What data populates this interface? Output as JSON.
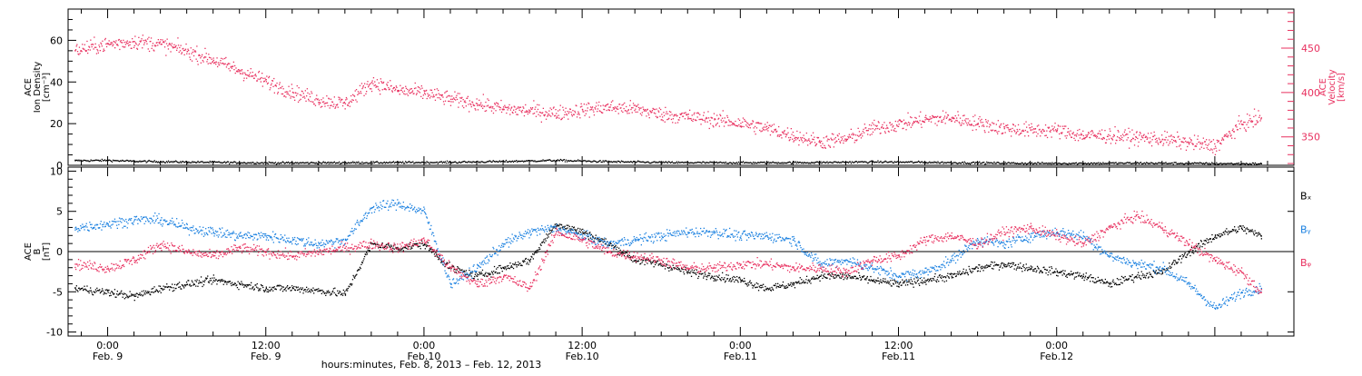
{
  "colors": {
    "black": "#000000",
    "pink": "#e8305f",
    "blue": "#1a80e0"
  },
  "chart_data": [
    {
      "type": "scatter",
      "ylabel_lines": [
        "ACE",
        "Ion Density",
        "[cm⁻³]"
      ],
      "y2label_lines": [
        "ACE",
        "Velocity",
        "[km/s]"
      ],
      "ylim": [
        0,
        75
      ],
      "y_ticks": [
        0,
        20,
        40,
        60
      ],
      "y2lim": [
        318,
        494
      ],
      "y2_ticks": [
        350,
        400,
        450
      ],
      "series": [
        {
          "axis": "left",
          "color": "#000000",
          "x": [
            -2.5,
            0,
            2,
            4,
            6,
            8,
            10,
            14,
            18,
            22,
            26,
            30,
            34,
            38,
            42,
            46,
            50,
            54,
            58,
            62,
            66,
            70,
            74,
            78,
            82,
            86,
            87.5
          ],
          "y": [
            2.5,
            2.6,
            2.2,
            2.0,
            1.8,
            1.7,
            1.5,
            1.4,
            1.5,
            1.6,
            1.7,
            2.1,
            2.6,
            2.0,
            1.6,
            1.5,
            1.5,
            1.6,
            1.9,
            1.7,
            1.4,
            1.2,
            1.2,
            1.3,
            1.2,
            1.0,
            1.0
          ]
        },
        {
          "axis": "right",
          "color": "#e8305f",
          "x": [
            -2.5,
            0,
            2,
            4,
            6,
            8,
            10,
            12,
            14,
            16,
            18,
            20,
            22,
            24,
            26,
            28,
            30,
            32,
            34,
            36,
            38,
            40,
            42,
            44,
            46,
            48,
            50,
            52,
            54,
            56,
            58,
            60,
            62,
            64,
            66,
            68,
            70,
            72,
            74,
            76,
            78,
            80,
            82,
            84,
            86,
            87.5
          ],
          "y": [
            448,
            455,
            458,
            455,
            447,
            437,
            425,
            413,
            401,
            392,
            388,
            412,
            403,
            400,
            393,
            388,
            382,
            380,
            377,
            381,
            384,
            382,
            376,
            373,
            370,
            366,
            360,
            352,
            345,
            348,
            360,
            365,
            370,
            372,
            366,
            360,
            358,
            358,
            352,
            352,
            350,
            348,
            344,
            340,
            365,
            372
          ]
        }
      ]
    },
    {
      "type": "scatter",
      "ylabel_lines": [
        "ACE",
        "B",
        "[nT]"
      ],
      "ylim": [
        -10.5,
        10.5
      ],
      "y_ticks": [
        -10,
        -5,
        0,
        5,
        10
      ],
      "zero_line": true,
      "legend": [
        "Bₓ",
        "Bᵧ",
        "Bᵩ"
      ],
      "series": [
        {
          "name": "Bₓ",
          "color": "#000000",
          "x": [
            -2.5,
            0,
            2,
            4,
            6,
            8,
            10,
            12,
            14,
            16,
            18,
            20,
            22,
            24,
            26,
            28,
            30,
            32,
            34,
            36,
            38,
            40,
            42,
            44,
            46,
            48,
            50,
            52,
            54,
            56,
            58,
            60,
            62,
            64,
            66,
            68,
            70,
            72,
            74,
            76,
            78,
            80,
            82,
            84,
            86,
            87.5
          ],
          "y": [
            -4.5,
            -5.0,
            -5.5,
            -4.5,
            -4.0,
            -3.5,
            -4.0,
            -4.5,
            -4.5,
            -4.8,
            -5.2,
            1.0,
            0.5,
            1.0,
            -2.0,
            -3.0,
            -2.0,
            -1.0,
            3.5,
            2.5,
            1.0,
            -1.0,
            -1.5,
            -2.5,
            -3.0,
            -3.5,
            -4.5,
            -4.0,
            -3.0,
            -3.0,
            -3.5,
            -4.0,
            -3.5,
            -3.0,
            -2.0,
            -1.5,
            -2.0,
            -2.5,
            -3.0,
            -4.0,
            -3.0,
            -2.5,
            0.0,
            2.0,
            3.0,
            2.0
          ]
        },
        {
          "name": "Bᵧ",
          "color": "#1a80e0",
          "x": [
            -2.5,
            0,
            2,
            4,
            6,
            8,
            10,
            12,
            14,
            16,
            18,
            20,
            22,
            24,
            26,
            28,
            30,
            32,
            34,
            36,
            38,
            40,
            42,
            44,
            46,
            48,
            50,
            52,
            54,
            56,
            58,
            60,
            62,
            64,
            66,
            68,
            70,
            72,
            74,
            76,
            78,
            80,
            82,
            84,
            86,
            87.5
          ],
          "y": [
            3.0,
            3.5,
            4.0,
            4.0,
            3.0,
            2.5,
            2.0,
            2.0,
            1.5,
            1.0,
            1.5,
            5.5,
            6.0,
            5.0,
            -4.0,
            -2.0,
            1.0,
            2.5,
            3.0,
            2.0,
            1.0,
            1.5,
            2.0,
            2.5,
            2.5,
            2.0,
            2.0,
            1.5,
            -1.5,
            -1.0,
            -2.0,
            -3.0,
            -2.5,
            -1.0,
            1.5,
            1.0,
            2.0,
            2.5,
            2.0,
            -0.5,
            -1.5,
            -2.0,
            -4.0,
            -7.0,
            -5.0,
            -4.5
          ]
        },
        {
          "name": "Bᵩ",
          "color": "#e8305f",
          "x": [
            -2.5,
            0,
            2,
            4,
            6,
            8,
            10,
            12,
            14,
            16,
            18,
            20,
            22,
            24,
            26,
            28,
            30,
            32,
            34,
            36,
            38,
            40,
            42,
            44,
            46,
            48,
            50,
            52,
            54,
            56,
            58,
            60,
            62,
            64,
            66,
            68,
            70,
            72,
            74,
            76,
            78,
            80,
            82,
            84,
            86,
            87.5
          ],
          "y": [
            -1.5,
            -2.0,
            -1.0,
            1.0,
            0.0,
            -0.5,
            0.5,
            0.0,
            -0.5,
            0.0,
            0.5,
            1.0,
            0.5,
            1.5,
            -2.0,
            -4.0,
            -3.0,
            -4.5,
            2.5,
            1.5,
            0.0,
            -0.5,
            -1.0,
            -2.0,
            -2.0,
            -1.5,
            -1.5,
            -2.0,
            -2.0,
            -2.5,
            -1.0,
            -0.5,
            1.5,
            2.0,
            1.0,
            2.5,
            3.0,
            2.0,
            1.0,
            3.0,
            4.5,
            3.0,
            1.0,
            -1.0,
            -2.5,
            -5.0
          ]
        }
      ]
    }
  ],
  "x_axis": {
    "xlim": [
      -3,
      90
    ],
    "ticks": [
      {
        "x": 0,
        "time": "0:00",
        "date": "Feb. 9"
      },
      {
        "x": 12,
        "time": "12:00",
        "date": "Feb. 9"
      },
      {
        "x": 24,
        "time": "0:00",
        "date": "Feb.10"
      },
      {
        "x": 36,
        "time": "12:00",
        "date": "Feb.10"
      },
      {
        "x": 48,
        "time": "0:00",
        "date": "Feb.11"
      },
      {
        "x": 60,
        "time": "12:00",
        "date": "Feb.11"
      },
      {
        "x": 72,
        "time": "0:00",
        "date": "Feb.12"
      }
    ],
    "label": "hours:minutes, Feb.  8, 2013 – Feb. 12, 2013"
  }
}
